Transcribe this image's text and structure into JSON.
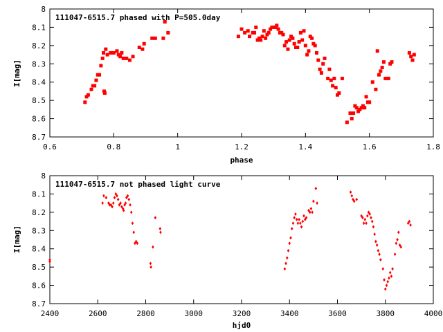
{
  "chart_data": [
    {
      "type": "scatter",
      "title": "111047-6515.7 phased with P=505.0day",
      "xlabel": "phase",
      "ylabel": "I[mag]",
      "xlim": [
        0.6,
        1.8
      ],
      "ylim": [
        8.7,
        8.0
      ],
      "y_inverted": true,
      "xticks": [
        "0.6",
        "0.8",
        "1",
        "1.2",
        "1.4",
        "1.6",
        "1.8"
      ],
      "yticks": [
        "8",
        "8.1",
        "8.2",
        "8.3",
        "8.4",
        "8.5",
        "8.6",
        "8.7"
      ],
      "marker": "square",
      "color": "#ff0000",
      "points": [
        [
          0.71,
          8.51
        ],
        [
          0.715,
          8.48
        ],
        [
          0.72,
          8.47
        ],
        [
          0.73,
          8.44
        ],
        [
          0.735,
          8.42
        ],
        [
          0.74,
          8.42
        ],
        [
          0.745,
          8.39
        ],
        [
          0.75,
          8.36
        ],
        [
          0.755,
          8.36
        ],
        [
          0.76,
          8.31
        ],
        [
          0.765,
          8.27
        ],
        [
          0.768,
          8.24
        ],
        [
          0.775,
          8.22
        ],
        [
          0.78,
          8.25
        ],
        [
          0.77,
          8.45
        ],
        [
          0.772,
          8.46
        ],
        [
          0.79,
          8.24
        ],
        [
          0.8,
          8.24
        ],
        [
          0.81,
          8.23
        ],
        [
          0.815,
          8.25
        ],
        [
          0.82,
          8.26
        ],
        [
          0.825,
          8.24
        ],
        [
          0.83,
          8.27
        ],
        [
          0.84,
          8.27
        ],
        [
          0.85,
          8.28
        ],
        [
          0.86,
          8.26
        ],
        [
          0.88,
          8.21
        ],
        [
          0.89,
          8.22
        ],
        [
          0.895,
          8.19
        ],
        [
          0.92,
          8.16
        ],
        [
          0.93,
          8.16
        ],
        [
          0.955,
          8.16
        ],
        [
          0.96,
          8.07
        ],
        [
          0.97,
          8.13
        ],
        [
          1.19,
          8.15
        ],
        [
          1.2,
          8.11
        ],
        [
          1.21,
          8.13
        ],
        [
          1.22,
          8.12
        ],
        [
          1.225,
          8.15
        ],
        [
          1.235,
          8.13
        ],
        [
          1.24,
          8.13
        ],
        [
          1.245,
          8.1
        ],
        [
          1.25,
          8.17
        ],
        [
          1.255,
          8.16
        ],
        [
          1.26,
          8.17
        ],
        [
          1.265,
          8.15
        ],
        [
          1.27,
          8.12
        ],
        [
          1.275,
          8.16
        ],
        [
          1.28,
          8.14
        ],
        [
          1.285,
          8.13
        ],
        [
          1.29,
          8.11
        ],
        [
          1.295,
          8.1
        ],
        [
          1.3,
          8.1
        ],
        [
          1.305,
          8.1
        ],
        [
          1.31,
          8.09
        ],
        [
          1.315,
          8.11
        ],
        [
          1.32,
          8.13
        ],
        [
          1.325,
          8.13
        ],
        [
          1.33,
          8.14
        ],
        [
          1.335,
          8.2
        ],
        [
          1.34,
          8.18
        ],
        [
          1.345,
          8.22
        ],
        [
          1.35,
          8.17
        ],
        [
          1.355,
          8.15
        ],
        [
          1.36,
          8.16
        ],
        [
          1.365,
          8.19
        ],
        [
          1.37,
          8.21
        ],
        [
          1.375,
          8.21
        ],
        [
          1.38,
          8.18
        ],
        [
          1.385,
          8.13
        ],
        [
          1.39,
          8.17
        ],
        [
          1.395,
          8.12
        ],
        [
          1.4,
          8.2
        ],
        [
          1.405,
          8.25
        ],
        [
          1.41,
          8.23
        ],
        [
          1.415,
          8.15
        ],
        [
          1.42,
          8.16
        ],
        [
          1.425,
          8.19
        ],
        [
          1.43,
          8.2
        ],
        [
          1.435,
          8.24
        ],
        [
          1.44,
          8.28
        ],
        [
          1.445,
          8.33
        ],
        [
          1.45,
          8.35
        ],
        [
          1.455,
          8.3
        ],
        [
          1.46,
          8.27
        ],
        [
          1.47,
          8.38
        ],
        [
          1.475,
          8.33
        ],
        [
          1.48,
          8.39
        ],
        [
          1.485,
          8.42
        ],
        [
          1.49,
          8.38
        ],
        [
          1.495,
          8.43
        ],
        [
          1.5,
          8.47
        ],
        [
          1.505,
          8.46
        ],
        [
          1.515,
          8.38
        ],
        [
          1.53,
          8.62
        ],
        [
          1.54,
          8.57
        ],
        [
          1.545,
          8.6
        ],
        [
          1.55,
          8.57
        ],
        [
          1.555,
          8.53
        ],
        [
          1.56,
          8.54
        ],
        [
          1.565,
          8.56
        ],
        [
          1.57,
          8.55
        ],
        [
          1.575,
          8.54
        ],
        [
          1.58,
          8.53
        ],
        [
          1.585,
          8.54
        ],
        [
          1.59,
          8.48
        ],
        [
          1.595,
          8.51
        ],
        [
          1.6,
          8.51
        ],
        [
          1.61,
          8.4
        ],
        [
          1.62,
          8.44
        ],
        [
          1.625,
          8.23
        ],
        [
          1.63,
          8.36
        ],
        [
          1.635,
          8.34
        ],
        [
          1.64,
          8.32
        ],
        [
          1.645,
          8.29
        ],
        [
          1.65,
          8.38
        ],
        [
          1.66,
          8.38
        ],
        [
          1.665,
          8.3
        ],
        [
          1.67,
          8.29
        ],
        [
          1.725,
          8.24
        ],
        [
          1.73,
          8.26
        ],
        [
          1.735,
          8.28
        ],
        [
          1.74,
          8.25
        ]
      ]
    },
    {
      "type": "scatter",
      "title": "111047-6515.7 not phased light curve",
      "xlabel": "hjd0",
      "ylabel": "I[mag]",
      "xlim": [
        2400,
        4000
      ],
      "ylim": [
        8.7,
        8.0
      ],
      "y_inverted": true,
      "xticks": [
        "2400",
        "2600",
        "2800",
        "3000",
        "3200",
        "3400",
        "3600",
        "3800",
        "4000"
      ],
      "yticks": [
        "8",
        "8.1",
        "8.2",
        "8.3",
        "8.4",
        "8.5",
        "8.6",
        "8.7"
      ],
      "marker": "diamond",
      "color": "#ff0000",
      "points": [
        [
          2400,
          8.46
        ],
        [
          2400,
          8.47
        ],
        [
          2620,
          8.15
        ],
        [
          2625,
          8.11
        ],
        [
          2635,
          8.12
        ],
        [
          2645,
          8.15
        ],
        [
          2650,
          8.16
        ],
        [
          2655,
          8.16
        ],
        [
          2660,
          8.17
        ],
        [
          2665,
          8.15
        ],
        [
          2670,
          8.12
        ],
        [
          2675,
          8.1
        ],
        [
          2680,
          8.11
        ],
        [
          2685,
          8.13
        ],
        [
          2690,
          8.16
        ],
        [
          2695,
          8.15
        ],
        [
          2700,
          8.17
        ],
        [
          2705,
          8.18
        ],
        [
          2708,
          8.19
        ],
        [
          2712,
          8.16
        ],
        [
          2716,
          8.15
        ],
        [
          2720,
          8.12
        ],
        [
          2725,
          8.11
        ],
        [
          2730,
          8.13
        ],
        [
          2735,
          8.16
        ],
        [
          2740,
          8.2
        ],
        [
          2745,
          8.26
        ],
        [
          2750,
          8.31
        ],
        [
          2755,
          8.37
        ],
        [
          2760,
          8.36
        ],
        [
          2765,
          8.37
        ],
        [
          2820,
          8.48
        ],
        [
          2822,
          8.5
        ],
        [
          2830,
          8.39
        ],
        [
          2840,
          8.23
        ],
        [
          2860,
          8.29
        ],
        [
          2862,
          8.31
        ],
        [
          3380,
          8.51
        ],
        [
          3385,
          8.48
        ],
        [
          3390,
          8.45
        ],
        [
          3395,
          8.41
        ],
        [
          3400,
          8.37
        ],
        [
          3405,
          8.34
        ],
        [
          3410,
          8.29
        ],
        [
          3415,
          8.26
        ],
        [
          3420,
          8.23
        ],
        [
          3425,
          8.21
        ],
        [
          3430,
          8.24
        ],
        [
          3435,
          8.26
        ],
        [
          3440,
          8.24
        ],
        [
          3445,
          8.26
        ],
        [
          3450,
          8.28
        ],
        [
          3455,
          8.25
        ],
        [
          3460,
          8.22
        ],
        [
          3465,
          8.24
        ],
        [
          3470,
          8.23
        ],
        [
          3480,
          8.19
        ],
        [
          3485,
          8.2
        ],
        [
          3490,
          8.18
        ],
        [
          3495,
          8.2
        ],
        [
          3500,
          8.14
        ],
        [
          3510,
          8.07
        ],
        [
          3515,
          8.15
        ],
        [
          3655,
          8.09
        ],
        [
          3660,
          8.11
        ],
        [
          3665,
          8.13
        ],
        [
          3670,
          8.14
        ],
        [
          3680,
          8.13
        ],
        [
          3700,
          8.22
        ],
        [
          3705,
          8.23
        ],
        [
          3710,
          8.26
        ],
        [
          3715,
          8.24
        ],
        [
          3720,
          8.26
        ],
        [
          3725,
          8.22
        ],
        [
          3730,
          8.2
        ],
        [
          3735,
          8.21
        ],
        [
          3740,
          8.23
        ],
        [
          3745,
          8.25
        ],
        [
          3750,
          8.28
        ],
        [
          3755,
          8.32
        ],
        [
          3760,
          8.36
        ],
        [
          3765,
          8.38
        ],
        [
          3770,
          8.41
        ],
        [
          3775,
          8.43
        ],
        [
          3780,
          8.46
        ],
        [
          3790,
          8.51
        ],
        [
          3795,
          8.57
        ],
        [
          3800,
          8.62
        ],
        [
          3805,
          8.6
        ],
        [
          3810,
          8.58
        ],
        [
          3815,
          8.56
        ],
        [
          3820,
          8.53
        ],
        [
          3825,
          8.55
        ],
        [
          3830,
          8.51
        ],
        [
          3840,
          8.43
        ],
        [
          3845,
          8.37
        ],
        [
          3850,
          8.35
        ],
        [
          3855,
          8.31
        ],
        [
          3860,
          8.38
        ],
        [
          3865,
          8.39
        ],
        [
          3895,
          8.26
        ],
        [
          3900,
          8.25
        ],
        [
          3905,
          8.27
        ]
      ]
    }
  ]
}
